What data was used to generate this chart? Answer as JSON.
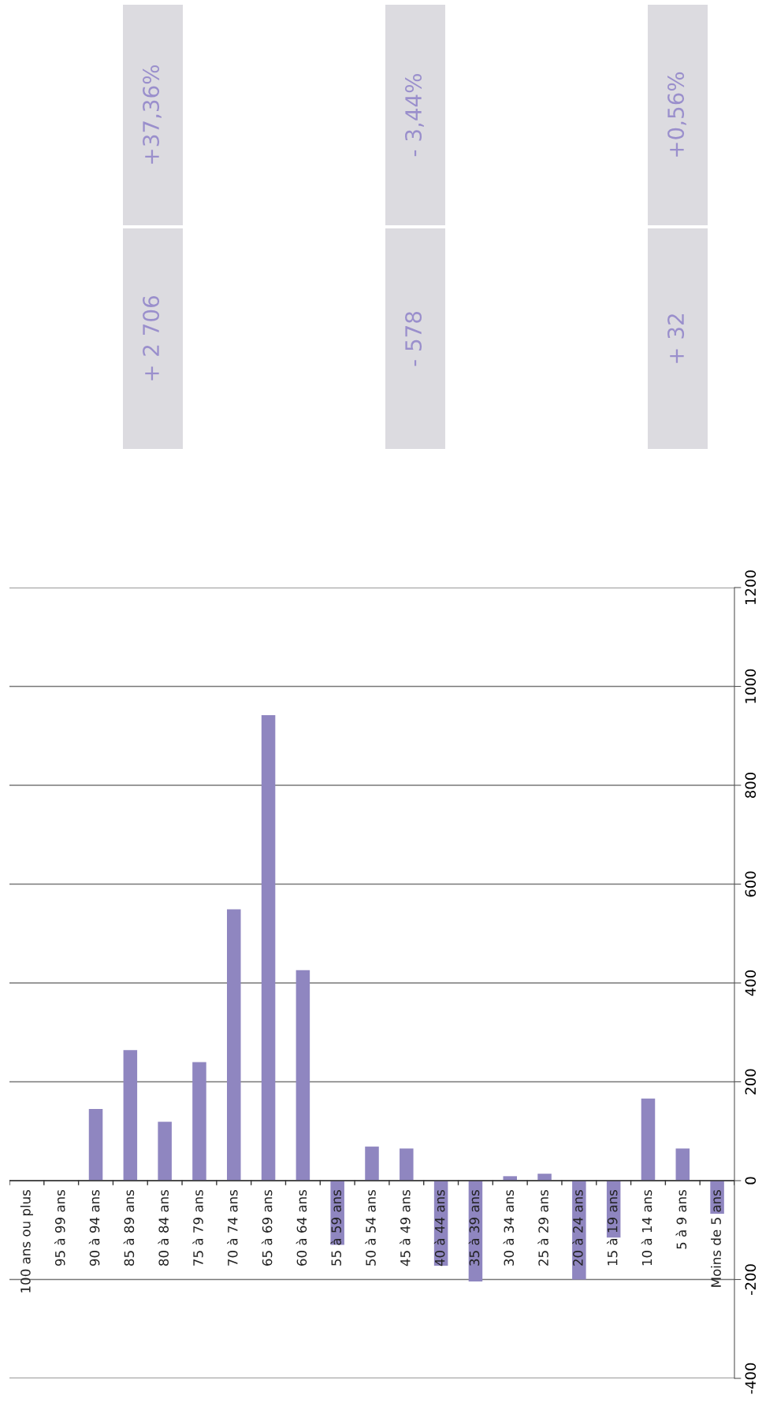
{
  "chart_data": {
    "type": "bar",
    "categories": [
      "100 ans ou plus",
      "95 à 99 ans",
      "90 à 94 ans",
      "85 à 89 ans",
      "80 à 84 ans",
      "75 à 79 ans",
      "70 à 74 ans",
      "65 à 69 ans",
      "60 à 64 ans",
      "55 à 59 ans",
      "50 à 54 ans",
      "45 à 49 ans",
      "40 à 44 ans",
      "35 à 39 ans",
      "30 à 34 ans",
      "25 à 29 ans",
      "20 à 24 ans",
      "15 à 19 ans",
      "10 à 14 ans",
      "5 à 9 ans",
      "Moins de 5 ans"
    ],
    "values": [
      0,
      0,
      145,
      264,
      119,
      240,
      549,
      942,
      426,
      -130,
      69,
      65,
      -172,
      -204,
      9,
      14,
      -200,
      -115,
      166,
      65,
      -67
    ],
    "color": "#8f86c0",
    "ylim": [
      -400,
      1200
    ],
    "yticks": [
      -400,
      -200,
      0,
      200,
      400,
      600,
      800,
      1000,
      1200
    ],
    "grid": "y",
    "annotations": [
      "+ 2 706",
      "+37,36%",
      "- 578",
      "- 3,44%",
      "+ 32",
      "+0,56%"
    ]
  }
}
